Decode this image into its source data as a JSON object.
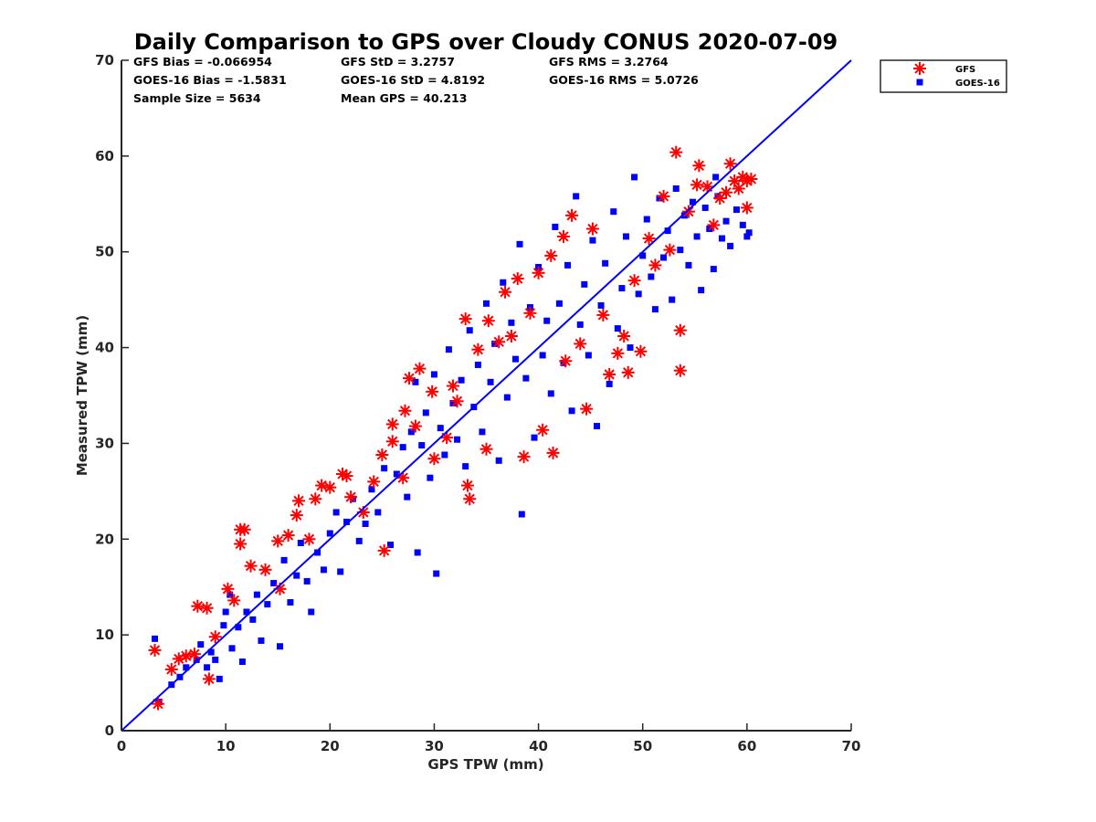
{
  "colors": {
    "gfs": "#ff0000",
    "goes": "#0000ff",
    "axis": "#262626",
    "line": "#0000ff"
  },
  "chart_data": {
    "type": "scatter",
    "title": "Daily Comparison to GPS over Cloudy CONUS 2020-07-09",
    "xlabel": "GPS TPW (mm)",
    "ylabel": "Measured TPW (mm)",
    "xlim": [
      0,
      70
    ],
    "ylim": [
      0,
      70
    ],
    "xticks": [
      0,
      10,
      20,
      30,
      40,
      50,
      60,
      70
    ],
    "yticks": [
      0,
      10,
      20,
      30,
      40,
      50,
      60,
      70
    ],
    "grid": false,
    "legend_position": "top-right (outside plot)",
    "stats": {
      "gfs_bias": "GFS Bias = -0.066954",
      "gfs_std": "GFS StD = 3.2757",
      "gfs_rms": "GFS RMS = 3.2764",
      "goes_bias": "GOES-16 Bias = -1.5831",
      "goes_std": "GOES-16 StD = 4.8192",
      "goes_rms": "GOES-16 RMS = 5.0726",
      "sample_size": "Sample Size = 5634",
      "mean_gps": "Mean GPS = 40.213"
    },
    "reference_line": {
      "x": [
        0,
        70
      ],
      "y": [
        0,
        70
      ]
    },
    "series": [
      {
        "name": "GFS",
        "marker": "asterisk",
        "color": "#ff0000",
        "points": [
          [
            3.2,
            8.4
          ],
          [
            3.5,
            2.8
          ],
          [
            4.8,
            6.4
          ],
          [
            5.5,
            7.5
          ],
          [
            6.2,
            7.8
          ],
          [
            7.0,
            8.0
          ],
          [
            7.3,
            13.0
          ],
          [
            8.2,
            12.8
          ],
          [
            8.4,
            5.4
          ],
          [
            9.0,
            9.8
          ],
          [
            10.2,
            14.8
          ],
          [
            10.8,
            13.6
          ],
          [
            11.4,
            21.0
          ],
          [
            11.4,
            19.5
          ],
          [
            11.8,
            21.0
          ],
          [
            12.4,
            17.2
          ],
          [
            13.8,
            16.8
          ],
          [
            15.0,
            19.8
          ],
          [
            15.2,
            14.8
          ],
          [
            16.0,
            20.4
          ],
          [
            16.8,
            22.5
          ],
          [
            17.0,
            24.0
          ],
          [
            18.0,
            20.0
          ],
          [
            18.6,
            24.2
          ],
          [
            19.2,
            25.6
          ],
          [
            20.0,
            25.4
          ],
          [
            21.2,
            26.8
          ],
          [
            21.6,
            26.6
          ],
          [
            22.0,
            24.4
          ],
          [
            23.2,
            22.8
          ],
          [
            24.2,
            26.0
          ],
          [
            25.0,
            28.8
          ],
          [
            25.2,
            18.8
          ],
          [
            26.0,
            30.2
          ],
          [
            26.0,
            32.0
          ],
          [
            27.0,
            26.4
          ],
          [
            27.2,
            33.4
          ],
          [
            27.6,
            36.8
          ],
          [
            28.2,
            31.8
          ],
          [
            28.6,
            37.8
          ],
          [
            29.8,
            35.4
          ],
          [
            30.0,
            28.4
          ],
          [
            31.2,
            30.6
          ],
          [
            31.8,
            36.0
          ],
          [
            32.2,
            34.4
          ],
          [
            33.0,
            43.0
          ],
          [
            33.2,
            25.6
          ],
          [
            33.4,
            24.2
          ],
          [
            34.2,
            39.8
          ],
          [
            35.0,
            29.4
          ],
          [
            35.2,
            42.8
          ],
          [
            36.2,
            40.6
          ],
          [
            36.8,
            45.8
          ],
          [
            37.4,
            41.2
          ],
          [
            38.0,
            47.2
          ],
          [
            38.6,
            28.6
          ],
          [
            39.2,
            43.6
          ],
          [
            40.0,
            47.8
          ],
          [
            40.4,
            31.4
          ],
          [
            41.2,
            49.6
          ],
          [
            41.4,
            29.0
          ],
          [
            42.4,
            51.6
          ],
          [
            42.6,
            38.6
          ],
          [
            43.2,
            53.8
          ],
          [
            44.0,
            40.4
          ],
          [
            44.6,
            33.6
          ],
          [
            45.2,
            52.4
          ],
          [
            46.2,
            43.4
          ],
          [
            46.8,
            37.2
          ],
          [
            47.6,
            39.4
          ],
          [
            48.2,
            41.2
          ],
          [
            48.6,
            37.4
          ],
          [
            49.2,
            47.0
          ],
          [
            49.8,
            39.6
          ],
          [
            50.6,
            51.4
          ],
          [
            51.2,
            48.6
          ],
          [
            52.0,
            55.8
          ],
          [
            52.6,
            50.2
          ],
          [
            53.2,
            60.4
          ],
          [
            53.6,
            41.8
          ],
          [
            53.6,
            37.6
          ],
          [
            54.4,
            54.2
          ],
          [
            55.2,
            57.0
          ],
          [
            55.4,
            59.0
          ],
          [
            56.2,
            56.8
          ],
          [
            56.8,
            52.8
          ],
          [
            57.4,
            55.6
          ],
          [
            58.0,
            56.2
          ],
          [
            58.4,
            59.2
          ],
          [
            58.8,
            57.4
          ],
          [
            59.2,
            56.6
          ],
          [
            59.6,
            57.8
          ],
          [
            60.0,
            57.4
          ],
          [
            60.0,
            54.6
          ],
          [
            60.4,
            57.6
          ]
        ]
      },
      {
        "name": "GOES-16",
        "marker": "square",
        "color": "#0000ff",
        "points": [
          [
            3.2,
            9.6
          ],
          [
            3.6,
            3.0
          ],
          [
            4.8,
            4.8
          ],
          [
            5.6,
            5.6
          ],
          [
            6.2,
            6.6
          ],
          [
            7.2,
            7.4
          ],
          [
            7.6,
            9.0
          ],
          [
            8.2,
            6.6
          ],
          [
            8.6,
            8.2
          ],
          [
            9.0,
            7.4
          ],
          [
            9.4,
            5.4
          ],
          [
            9.8,
            11.0
          ],
          [
            10.0,
            12.4
          ],
          [
            10.4,
            14.2
          ],
          [
            10.6,
            8.6
          ],
          [
            11.2,
            10.8
          ],
          [
            11.6,
            7.2
          ],
          [
            12.0,
            12.4
          ],
          [
            12.6,
            11.6
          ],
          [
            13.0,
            14.2
          ],
          [
            13.4,
            9.4
          ],
          [
            14.0,
            13.2
          ],
          [
            14.6,
            15.4
          ],
          [
            15.2,
            8.8
          ],
          [
            15.6,
            17.8
          ],
          [
            16.2,
            13.4
          ],
          [
            16.8,
            16.2
          ],
          [
            17.2,
            19.6
          ],
          [
            17.8,
            15.6
          ],
          [
            18.2,
            12.4
          ],
          [
            18.8,
            18.6
          ],
          [
            19.4,
            16.8
          ],
          [
            20.0,
            20.6
          ],
          [
            20.6,
            22.8
          ],
          [
            21.0,
            16.6
          ],
          [
            21.6,
            21.8
          ],
          [
            22.2,
            24.2
          ],
          [
            22.8,
            19.8
          ],
          [
            23.4,
            21.6
          ],
          [
            24.0,
            25.2
          ],
          [
            24.6,
            22.8
          ],
          [
            25.2,
            27.4
          ],
          [
            25.8,
            19.4
          ],
          [
            26.4,
            26.8
          ],
          [
            27.0,
            29.6
          ],
          [
            27.4,
            24.4
          ],
          [
            27.8,
            31.2
          ],
          [
            28.2,
            36.4
          ],
          [
            28.4,
            18.6
          ],
          [
            28.8,
            29.8
          ],
          [
            29.2,
            33.2
          ],
          [
            29.6,
            26.4
          ],
          [
            30.0,
            37.2
          ],
          [
            30.2,
            16.4
          ],
          [
            30.6,
            31.6
          ],
          [
            31.0,
            28.8
          ],
          [
            31.4,
            39.8
          ],
          [
            31.8,
            34.2
          ],
          [
            32.2,
            30.4
          ],
          [
            32.6,
            36.6
          ],
          [
            33.0,
            27.6
          ],
          [
            33.4,
            41.8
          ],
          [
            33.8,
            33.8
          ],
          [
            34.2,
            38.2
          ],
          [
            34.6,
            31.2
          ],
          [
            35.0,
            44.6
          ],
          [
            35.4,
            36.4
          ],
          [
            35.8,
            40.4
          ],
          [
            36.2,
            28.2
          ],
          [
            36.6,
            46.8
          ],
          [
            37.0,
            34.8
          ],
          [
            37.4,
            42.6
          ],
          [
            37.8,
            38.8
          ],
          [
            38.2,
            50.8
          ],
          [
            38.4,
            22.6
          ],
          [
            38.8,
            36.8
          ],
          [
            39.2,
            44.2
          ],
          [
            39.6,
            30.6
          ],
          [
            40.0,
            48.4
          ],
          [
            40.4,
            39.2
          ],
          [
            40.8,
            42.8
          ],
          [
            41.2,
            35.2
          ],
          [
            41.6,
            52.6
          ],
          [
            42.0,
            44.6
          ],
          [
            42.4,
            38.4
          ],
          [
            42.8,
            48.6
          ],
          [
            43.2,
            33.4
          ],
          [
            43.6,
            55.8
          ],
          [
            44.0,
            42.4
          ],
          [
            44.4,
            46.6
          ],
          [
            44.8,
            39.2
          ],
          [
            45.2,
            51.2
          ],
          [
            45.6,
            31.8
          ],
          [
            46.0,
            44.4
          ],
          [
            46.4,
            48.8
          ],
          [
            46.8,
            36.2
          ],
          [
            47.2,
            54.2
          ],
          [
            47.6,
            42.0
          ],
          [
            48.0,
            46.2
          ],
          [
            48.4,
            51.6
          ],
          [
            48.8,
            40.0
          ],
          [
            49.2,
            57.8
          ],
          [
            49.6,
            45.6
          ],
          [
            50.0,
            49.6
          ],
          [
            50.4,
            53.4
          ],
          [
            50.8,
            47.4
          ],
          [
            51.2,
            44.0
          ],
          [
            51.6,
            55.6
          ],
          [
            52.0,
            49.4
          ],
          [
            52.4,
            52.2
          ],
          [
            52.8,
            45.0
          ],
          [
            53.2,
            56.6
          ],
          [
            53.6,
            50.2
          ],
          [
            54.0,
            53.8
          ],
          [
            54.4,
            48.6
          ],
          [
            54.8,
            55.2
          ],
          [
            55.2,
            51.6
          ],
          [
            55.6,
            46.0
          ],
          [
            56.0,
            54.6
          ],
          [
            56.4,
            52.4
          ],
          [
            56.8,
            48.2
          ],
          [
            57.2,
            55.8
          ],
          [
            57.6,
            51.4
          ],
          [
            58.0,
            53.2
          ],
          [
            58.4,
            50.6
          ],
          [
            59.0,
            54.4
          ],
          [
            59.6,
            52.8
          ],
          [
            60.0,
            51.6
          ],
          [
            60.2,
            52.0
          ],
          [
            57.0,
            57.8
          ]
        ]
      }
    ],
    "legend": [
      "GFS",
      "GOES-16"
    ]
  }
}
